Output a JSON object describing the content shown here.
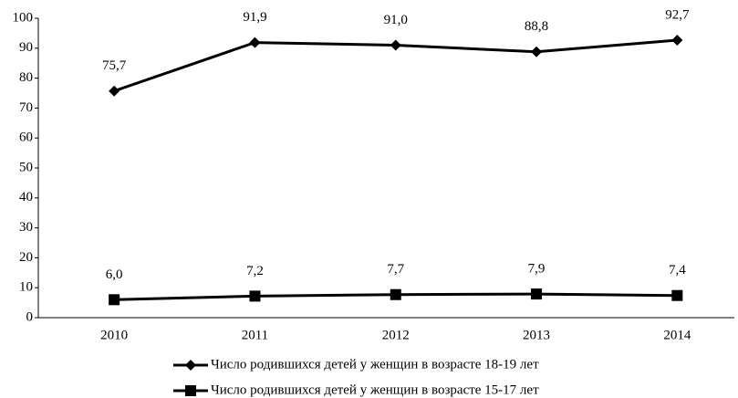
{
  "chart_data": {
    "type": "line",
    "categories": [
      "2010",
      "2011",
      "2012",
      "2013",
      "2014"
    ],
    "series": [
      {
        "name": "Число родившихся детей у женщин в возрасте 18-19 лет",
        "color": "#000000",
        "marker": "diamond",
        "values": [
          75.7,
          91.9,
          91.0,
          88.8,
          92.7
        ],
        "value_labels": [
          "75,7",
          "91,9",
          "91,0",
          "88,8",
          "92,7"
        ]
      },
      {
        "name": "Число родившихся детей у женщин в возрасте 15-17 лет",
        "color": "#000000",
        "marker": "square",
        "values": [
          6.0,
          7.2,
          7.7,
          7.9,
          7.4
        ],
        "value_labels": [
          "6,0",
          "7,2",
          "7,7",
          "7,9",
          "7,4"
        ]
      }
    ],
    "ylim": [
      0,
      100
    ],
    "yticks": [
      0,
      10,
      20,
      30,
      40,
      50,
      60,
      70,
      80,
      90,
      100
    ],
    "grid": false,
    "legend": "bottom"
  }
}
